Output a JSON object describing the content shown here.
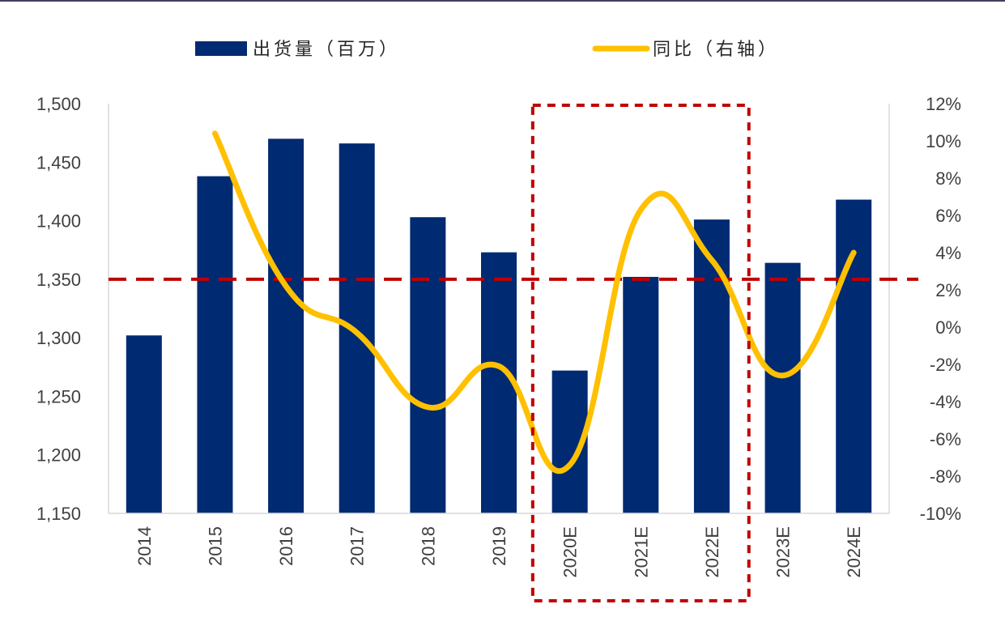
{
  "chart_data": {
    "type": "bar",
    "categories": [
      "2014",
      "2015",
      "2016",
      "2017",
      "2018",
      "2019",
      "2020E",
      "2021E",
      "2022E",
      "2023E",
      "2024E"
    ],
    "series": [
      {
        "name": "出货量（百万）",
        "type": "bar",
        "axis": "left",
        "color": "#002a72",
        "values": [
          1302,
          1438,
          1470,
          1466,
          1403,
          1373,
          1272,
          1352,
          1401,
          1364,
          1418
        ]
      },
      {
        "name": "同比（右轴）",
        "type": "line",
        "axis": "right",
        "color": "#ffc000",
        "values": [
          null,
          10.4,
          2.2,
          -0.3,
          -4.3,
          -2.1,
          -7.4,
          6.3,
          3.6,
          -2.6,
          4.0
        ]
      }
    ],
    "y_left": {
      "min": 1150,
      "max": 1500,
      "ticks": [
        1150,
        1200,
        1250,
        1300,
        1350,
        1400,
        1450,
        1500
      ],
      "tick_labels": [
        "1,150",
        "1,200",
        "1,250",
        "1,300",
        "1,350",
        "1,400",
        "1,450",
        "1,500"
      ]
    },
    "y_right": {
      "min": -10,
      "max": 12,
      "ticks": [
        -10,
        -8,
        -6,
        -4,
        -2,
        0,
        2,
        4,
        6,
        8,
        10,
        12
      ],
      "tick_labels": [
        "-10%",
        "-8%",
        "-6%",
        "-4%",
        "-2%",
        "0%",
        "2%",
        "4%",
        "6%",
        "8%",
        "10%",
        "12%"
      ]
    },
    "reference_line": {
      "axis": "left",
      "value": 1350,
      "color": "#c00000",
      "style": "dashed"
    },
    "highlight": {
      "from_category": "2020E",
      "to_category": "2022E",
      "color": "#c00000",
      "style": "dashed"
    },
    "legend_position": "top",
    "grid": false,
    "title": "",
    "xlabel": "",
    "ylabel": ""
  }
}
